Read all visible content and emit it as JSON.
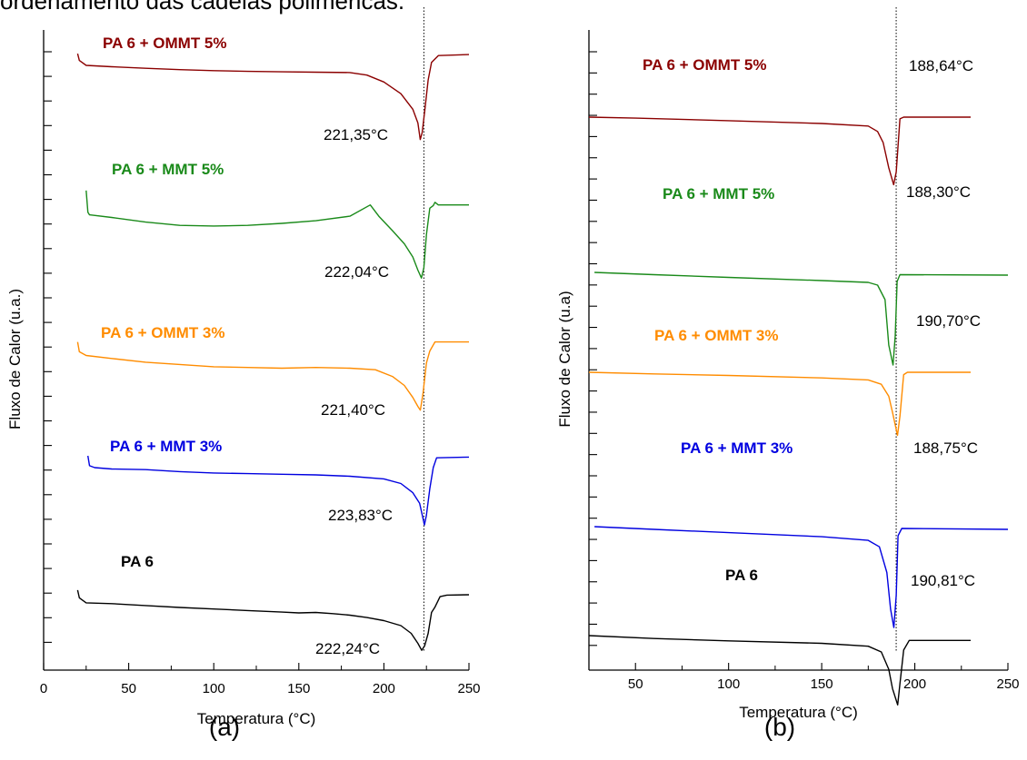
{
  "page": {
    "caption": "ordenamento das cadeias poliméricas."
  },
  "chart_data": [
    {
      "type": "line",
      "panel_label": "(a)",
      "xlabel": "Temperatura (°C)",
      "ylabel": "Fluxo de Calor (u.a.)",
      "xlim": [
        0,
        250
      ],
      "xticks": [
        0,
        50,
        100,
        150,
        200,
        250
      ],
      "reference_line_x": 223.5,
      "series": [
        {
          "name": "PA 6 + OMMT 5%",
          "color": "#8b0000",
          "peak_label": "221,35°C",
          "points": [
            [
              20,
              0.05
            ],
            [
              21,
              0.4
            ],
            [
              25,
              0.65
            ],
            [
              40,
              0.72
            ],
            [
              60,
              0.8
            ],
            [
              80,
              0.87
            ],
            [
              100,
              0.92
            ],
            [
              120,
              0.96
            ],
            [
              140,
              0.98
            ],
            [
              160,
              1.0
            ],
            [
              180,
              1.02
            ],
            [
              190,
              1.15
            ],
            [
              200,
              1.5
            ],
            [
              210,
              2.1
            ],
            [
              217,
              2.9
            ],
            [
              220,
              3.6
            ],
            [
              221.35,
              4.45
            ],
            [
              222.5,
              4.1
            ],
            [
              224,
              3.0
            ],
            [
              226,
              1.4
            ],
            [
              228,
              0.5
            ],
            [
              232,
              0.15
            ],
            [
              250,
              0.1
            ]
          ]
        },
        {
          "name": "PA 6 + MMT 5%",
          "color": "#1a8a1a",
          "peak_label": "222,04°C",
          "points": [
            [
              25,
              -1.05
            ],
            [
              26,
              0.6
            ],
            [
              27,
              0.8
            ],
            [
              40,
              1.0
            ],
            [
              60,
              1.35
            ],
            [
              80,
              1.6
            ],
            [
              100,
              1.65
            ],
            [
              120,
              1.6
            ],
            [
              140,
              1.45
            ],
            [
              160,
              1.25
            ],
            [
              180,
              0.9
            ],
            [
              192,
              0.05
            ],
            [
              197,
              0.9
            ],
            [
              205,
              2.0
            ],
            [
              212,
              3.0
            ],
            [
              217,
              4.0
            ],
            [
              220,
              5.0
            ],
            [
              222.04,
              5.6
            ],
            [
              223.5,
              4.8
            ],
            [
              225,
              2.3
            ],
            [
              227,
              0.3
            ],
            [
              229,
              0.1
            ],
            [
              230,
              -0.15
            ],
            [
              232,
              0.05
            ],
            [
              250,
              0.05
            ]
          ]
        },
        {
          "name": "PA 6 + OMMT 3%",
          "color": "#ff8c00",
          "peak_label": "221,40°C",
          "points": [
            [
              20,
              0.1
            ],
            [
              21,
              0.75
            ],
            [
              25,
              1.0
            ],
            [
              40,
              1.2
            ],
            [
              60,
              1.45
            ],
            [
              80,
              1.6
            ],
            [
              100,
              1.75
            ],
            [
              120,
              1.8
            ],
            [
              140,
              1.85
            ],
            [
              160,
              1.8
            ],
            [
              180,
              1.85
            ],
            [
              195,
              1.95
            ],
            [
              205,
              2.4
            ],
            [
              212,
              3.0
            ],
            [
              217,
              3.8
            ],
            [
              220,
              4.4
            ],
            [
              221.4,
              4.65
            ],
            [
              223,
              3.5
            ],
            [
              225,
              1.5
            ],
            [
              227,
              0.7
            ],
            [
              230,
              0.1
            ],
            [
              250,
              0.1
            ]
          ]
        },
        {
          "name": "PA 6 + MMT 3%",
          "color": "#0000e0",
          "peak_label": "223,83°C",
          "points": [
            [
              26,
              0.0
            ],
            [
              27,
              0.75
            ],
            [
              30,
              0.9
            ],
            [
              40,
              1.0
            ],
            [
              60,
              1.05
            ],
            [
              80,
              1.2
            ],
            [
              100,
              1.3
            ],
            [
              120,
              1.35
            ],
            [
              140,
              1.4
            ],
            [
              160,
              1.45
            ],
            [
              180,
              1.55
            ],
            [
              200,
              1.75
            ],
            [
              210,
              2.1
            ],
            [
              217,
              2.8
            ],
            [
              221,
              3.6
            ],
            [
              223.83,
              5.25
            ],
            [
              225,
              4.5
            ],
            [
              227,
              2.5
            ],
            [
              229,
              0.9
            ],
            [
              231,
              0.15
            ],
            [
              250,
              0.1
            ]
          ]
        },
        {
          "name": "PA 6",
          "color": "#000000",
          "peak_label": "222,24°C",
          "points": [
            [
              20,
              -0.6
            ],
            [
              21,
              0.4
            ],
            [
              25,
              1.05
            ],
            [
              40,
              1.15
            ],
            [
              60,
              1.4
            ],
            [
              80,
              1.65
            ],
            [
              100,
              1.85
            ],
            [
              120,
              2.05
            ],
            [
              140,
              2.25
            ],
            [
              150,
              2.35
            ],
            [
              160,
              2.3
            ],
            [
              170,
              2.45
            ],
            [
              180,
              2.65
            ],
            [
              190,
              2.95
            ],
            [
              200,
              3.35
            ],
            [
              210,
              4.0
            ],
            [
              216,
              5.0
            ],
            [
              220,
              6.3
            ],
            [
              222.24,
              7.2
            ],
            [
              224,
              6.6
            ],
            [
              226,
              5.0
            ],
            [
              228,
              2.3
            ],
            [
              230,
              1.6
            ],
            [
              233,
              0.25
            ],
            [
              237,
              0.05
            ],
            [
              250,
              0.0
            ]
          ]
        }
      ]
    },
    {
      "type": "line",
      "panel_label": "(b)",
      "xlabel": "Temperatura (°C)",
      "ylabel": "Fluxo de Calor (u.a)",
      "xlim": [
        25,
        250
      ],
      "xticks": [
        50,
        100,
        150,
        200,
        250
      ],
      "reference_line_x": 190,
      "series": [
        {
          "name": "PA 6 + OMMT 5%",
          "color": "#8b0000",
          "peak_label": "188,64°C",
          "points": [
            [
              25,
              0.0
            ],
            [
              50,
              0.12
            ],
            [
              100,
              0.42
            ],
            [
              150,
              0.75
            ],
            [
              175,
              1.05
            ],
            [
              180,
              1.7
            ],
            [
              183,
              3.0
            ],
            [
              186,
              6.0
            ],
            [
              188.64,
              8.0
            ],
            [
              190,
              6.5
            ],
            [
              192,
              0.2
            ],
            [
              194,
              0.0
            ],
            [
              230,
              0.0
            ]
          ]
        },
        {
          "name": "PA 6 + MMT 5%",
          "color": "#1a8a1a",
          "peak_label": "188,30°C",
          "points": [
            [
              28,
              0.0
            ],
            [
              60,
              0.25
            ],
            [
              100,
              0.55
            ],
            [
              150,
              0.9
            ],
            [
              175,
              1.1
            ],
            [
              180,
              1.4
            ],
            [
              184,
              3.0
            ],
            [
              186,
              8.0
            ],
            [
              188.3,
              10.2
            ],
            [
              189.5,
              7.0
            ],
            [
              190.5,
              1.0
            ],
            [
              192,
              0.25
            ],
            [
              250,
              0.3
            ]
          ]
        },
        {
          "name": "PA 6 + OMMT 3%",
          "color": "#ff8c00",
          "peak_label": "190,70°C",
          "points": [
            [
              25,
              0.0
            ],
            [
              60,
              0.2
            ],
            [
              100,
              0.4
            ],
            [
              150,
              0.7
            ],
            [
              175,
              0.95
            ],
            [
              182,
              1.5
            ],
            [
              186,
              3.0
            ],
            [
              188,
              5.0
            ],
            [
              190.7,
              7.9
            ],
            [
              192,
              5.5
            ],
            [
              194,
              0.3
            ],
            [
              196,
              0.0
            ],
            [
              230,
              0.0
            ]
          ]
        },
        {
          "name": "PA 6 + MMT 3%",
          "color": "#0000e0",
          "peak_label": "188,75°C",
          "points": [
            [
              28,
              0.0
            ],
            [
              60,
              0.3
            ],
            [
              100,
              0.65
            ],
            [
              150,
              1.1
            ],
            [
              175,
              1.5
            ],
            [
              181,
              2.2
            ],
            [
              185,
              5.0
            ],
            [
              187,
              9.0
            ],
            [
              188.75,
              11.0
            ],
            [
              190,
              7.5
            ],
            [
              191,
              1.0
            ],
            [
              193,
              0.2
            ],
            [
              250,
              0.3
            ]
          ]
        },
        {
          "name": "PA 6",
          "color": "#000000",
          "peak_label": "190,81°C",
          "points": [
            [
              25,
              0.0
            ],
            [
              60,
              0.3
            ],
            [
              100,
              0.55
            ],
            [
              150,
              0.8
            ],
            [
              175,
              1.1
            ],
            [
              182,
              1.7
            ],
            [
              186,
              3.5
            ],
            [
              188,
              5.5
            ],
            [
              190.81,
              7.2
            ],
            [
              192,
              5.0
            ],
            [
              194,
              1.5
            ],
            [
              197,
              0.5
            ],
            [
              230,
              0.5
            ]
          ]
        }
      ]
    }
  ]
}
